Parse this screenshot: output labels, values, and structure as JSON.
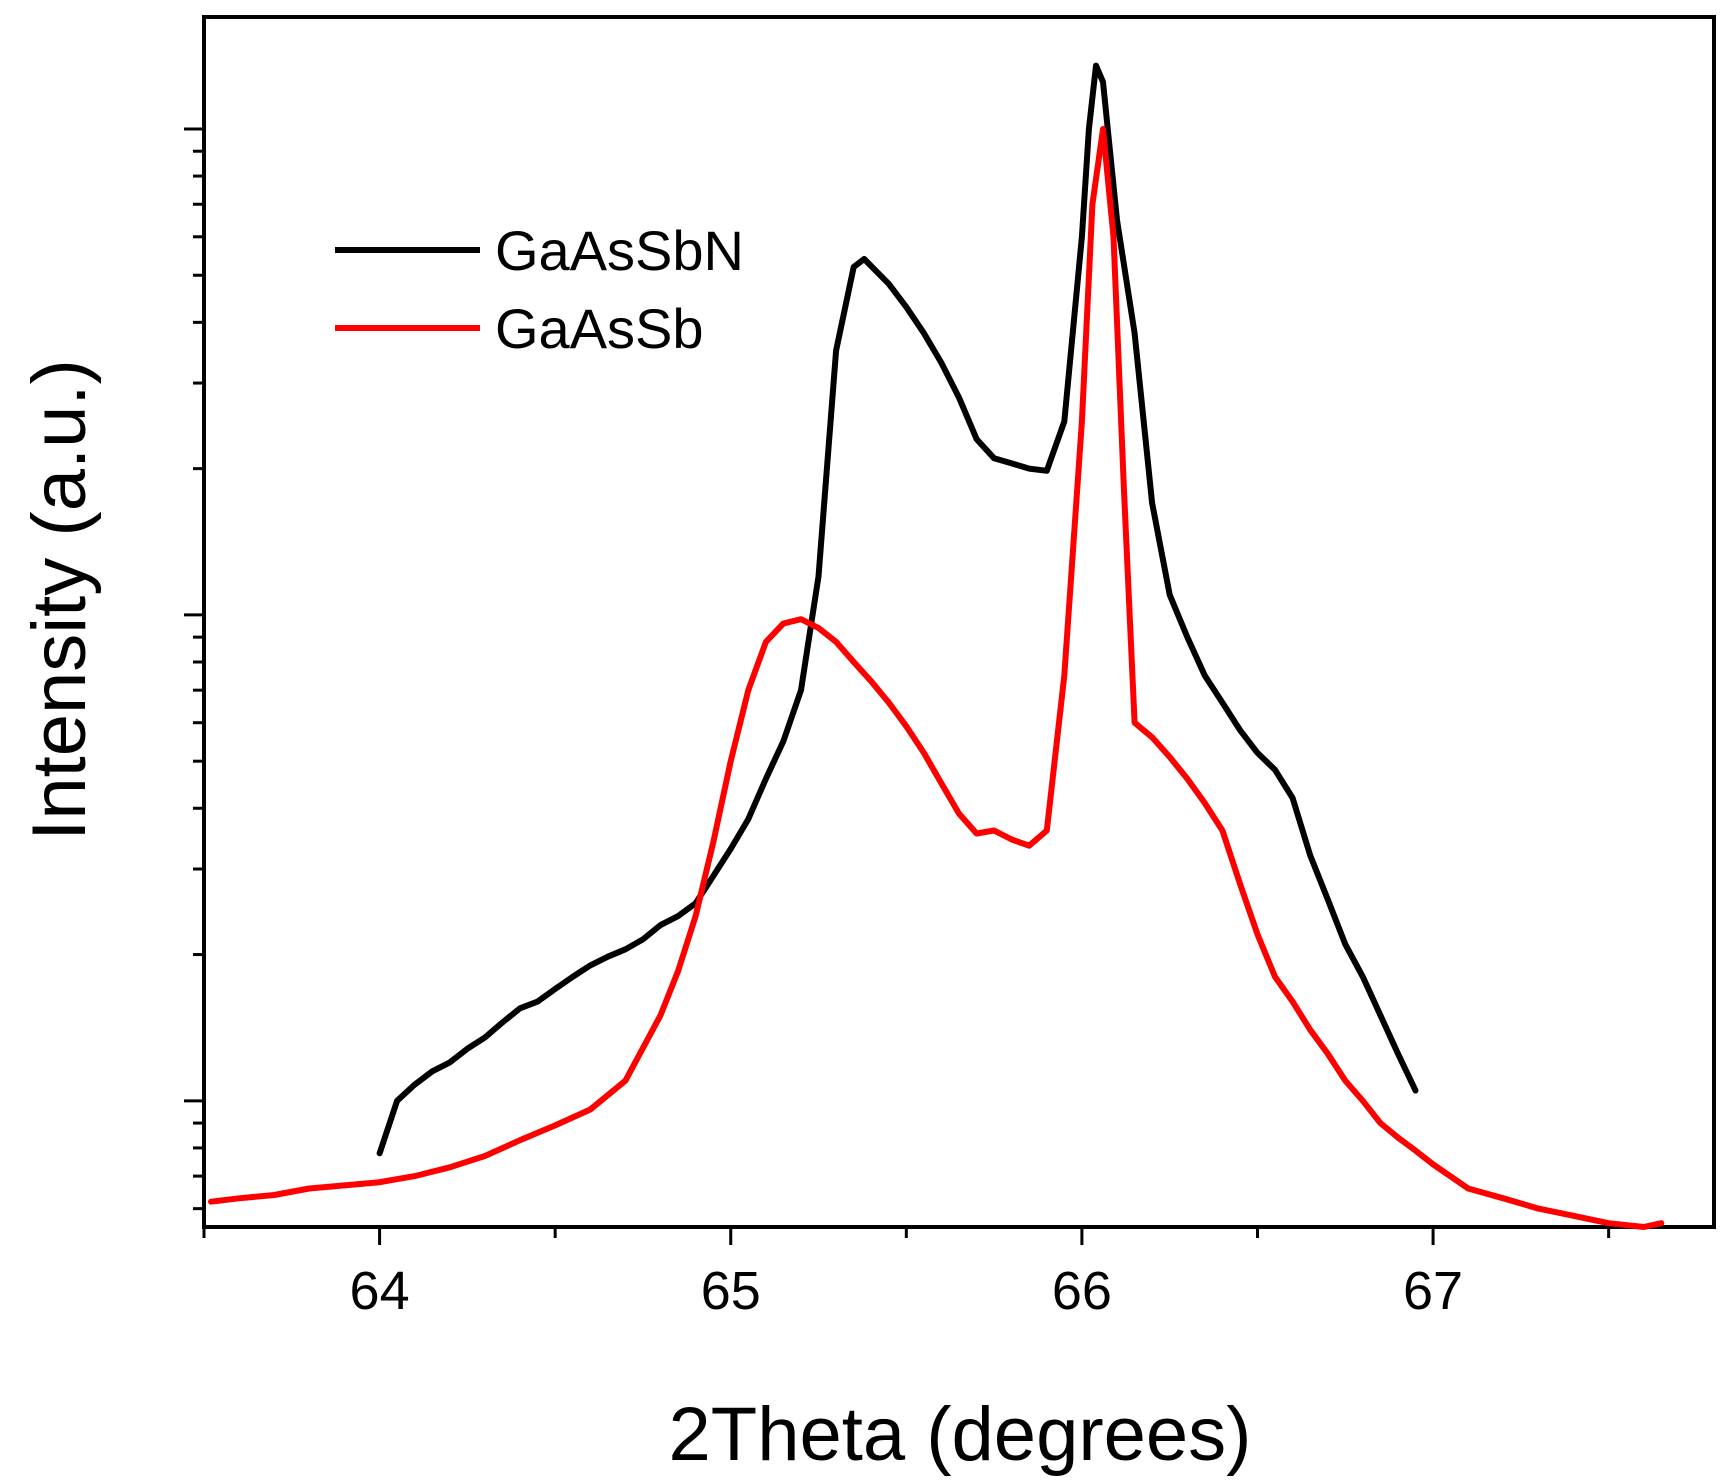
{
  "chart_data": {
    "type": "line",
    "title": "",
    "xlabel": "2Theta (degrees)",
    "ylabel": "Intensity (a.u.)",
    "xlim": [
      63.5,
      67.8
    ],
    "ylim": [
      0.55,
      170
    ],
    "yscale": "log",
    "xticks": [
      64,
      65,
      66,
      67
    ],
    "xtick_labels": [
      "64",
      "65",
      "66",
      "67"
    ],
    "legend_position": "upper-left",
    "series": [
      {
        "name": "GaAsSbN",
        "color": "#000000",
        "x": [
          64.0,
          64.05,
          64.1,
          64.15,
          64.2,
          64.25,
          64.3,
          64.35,
          64.4,
          64.45,
          64.5,
          64.55,
          64.6,
          64.65,
          64.7,
          64.75,
          64.8,
          64.85,
          64.9,
          64.95,
          65.0,
          65.05,
          65.1,
          65.15,
          65.2,
          65.25,
          65.3,
          65.35,
          65.38,
          65.45,
          65.5,
          65.55,
          65.6,
          65.65,
          65.7,
          65.75,
          65.8,
          65.85,
          65.9,
          65.95,
          66.0,
          66.02,
          66.04,
          66.06,
          66.08,
          66.1,
          66.15,
          66.2,
          66.25,
          66.3,
          66.35,
          66.4,
          66.45,
          66.5,
          66.55,
          66.6,
          66.65,
          66.7,
          66.75,
          66.8,
          66.85,
          66.9,
          66.95
        ],
        "y": [
          0.78,
          1.0,
          1.08,
          1.15,
          1.2,
          1.28,
          1.35,
          1.45,
          1.55,
          1.6,
          1.7,
          1.8,
          1.9,
          1.98,
          2.05,
          2.15,
          2.3,
          2.4,
          2.55,
          2.9,
          3.3,
          3.8,
          4.6,
          5.5,
          7.0,
          12,
          35,
          52,
          54,
          48,
          43,
          38,
          33,
          28,
          23,
          21,
          20.5,
          20,
          19.8,
          25,
          60,
          100,
          135,
          125,
          90,
          65,
          38,
          17,
          11,
          9,
          7.5,
          6.6,
          5.8,
          5.2,
          4.8,
          4.2,
          3.2,
          2.6,
          2.1,
          1.8,
          1.5,
          1.25,
          1.05
        ]
      },
      {
        "name": "GaAsSb",
        "color": "#ff0000",
        "x": [
          63.52,
          63.6,
          63.7,
          63.8,
          63.9,
          64.0,
          64.1,
          64.2,
          64.3,
          64.4,
          64.5,
          64.6,
          64.7,
          64.8,
          64.85,
          64.9,
          64.95,
          65.0,
          65.05,
          65.1,
          65.15,
          65.2,
          65.25,
          65.3,
          65.35,
          65.4,
          65.45,
          65.5,
          65.55,
          65.6,
          65.65,
          65.7,
          65.75,
          65.8,
          65.85,
          65.9,
          65.95,
          66.0,
          66.03,
          66.06,
          66.09,
          66.12,
          66.15,
          66.2,
          66.25,
          66.3,
          66.35,
          66.4,
          66.45,
          66.5,
          66.55,
          66.6,
          66.65,
          66.7,
          66.75,
          66.8,
          66.85,
          66.9,
          66.95,
          67.0,
          67.1,
          67.2,
          67.3,
          67.4,
          67.5,
          67.6,
          67.65
        ],
        "y": [
          0.62,
          0.63,
          0.64,
          0.66,
          0.67,
          0.68,
          0.7,
          0.73,
          0.77,
          0.83,
          0.89,
          0.96,
          1.1,
          1.5,
          1.85,
          2.4,
          3.4,
          5.0,
          7.0,
          8.8,
          9.6,
          9.8,
          9.4,
          8.8,
          8.0,
          7.3,
          6.6,
          5.9,
          5.2,
          4.5,
          3.9,
          3.55,
          3.6,
          3.45,
          3.35,
          3.6,
          7.5,
          25,
          70,
          100,
          60,
          18,
          6.0,
          5.6,
          5.1,
          4.6,
          4.1,
          3.6,
          2.8,
          2.2,
          1.8,
          1.6,
          1.4,
          1.25,
          1.1,
          1.0,
          0.9,
          0.84,
          0.79,
          0.74,
          0.66,
          0.63,
          0.6,
          0.58,
          0.56,
          0.55,
          0.56
        ]
      }
    ]
  }
}
